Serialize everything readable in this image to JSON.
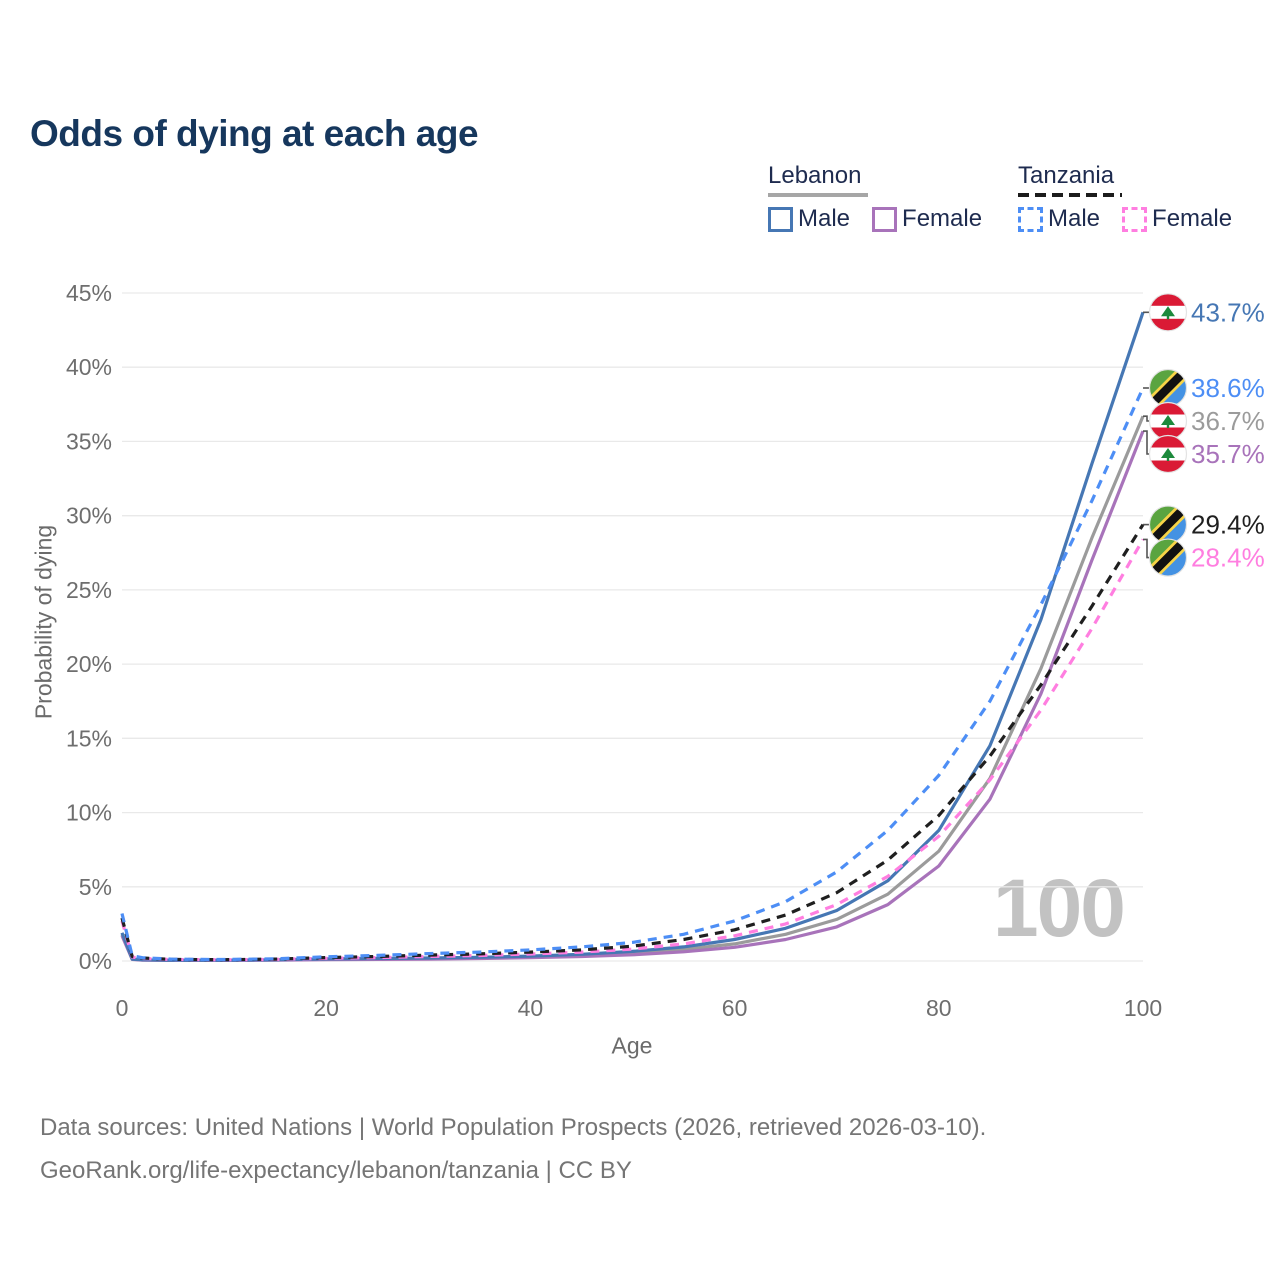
{
  "title": "Odds of dying at each age",
  "watermark": "100",
  "legend": {
    "groups": [
      {
        "id": "lebanon",
        "label": "Lebanon",
        "line_style": "solid",
        "line_color": "#a6a6a6",
        "items": [
          {
            "label": "Male",
            "color": "#4677b4",
            "dash": false
          },
          {
            "label": "Female",
            "color": "#a873ba",
            "dash": false
          }
        ]
      },
      {
        "id": "tanzania",
        "label": "Tanzania",
        "line_style": "dashed",
        "line_color": "#1c1c1c",
        "items": [
          {
            "label": "Male",
            "color": "#4d8ef5",
            "dash": true
          },
          {
            "label": "Female",
            "color": "#ff7ee0",
            "dash": true
          }
        ]
      }
    ]
  },
  "footer": {
    "line1": "Data sources: United Nations | World Population Prospects (2026, retrieved 2026-03-10).",
    "line2": "GeoRank.org/life-expectancy/lebanon/tanzania | CC BY"
  },
  "chart_data": {
    "type": "line",
    "title": "Odds of dying at each age",
    "xlabel": "Age",
    "ylabel": "Probability of dying",
    "xlim": [
      0,
      100
    ],
    "ylim": [
      0,
      45
    ],
    "x_ticks": [
      0,
      20,
      40,
      60,
      80,
      100
    ],
    "y_ticks": [
      0,
      5,
      10,
      15,
      20,
      25,
      30,
      35,
      40,
      45
    ],
    "y_tick_suffix": "%",
    "grid": "horizontal",
    "legend_position": "top-right",
    "hover_age": "100",
    "x": [
      0,
      1,
      2,
      5,
      10,
      15,
      20,
      25,
      30,
      35,
      40,
      45,
      50,
      55,
      60,
      65,
      70,
      75,
      80,
      85,
      90,
      95,
      100
    ],
    "series": [
      {
        "id": "lebanon-male",
        "name": "Lebanon Male",
        "country": "Lebanon",
        "sex": "Male",
        "color": "#4677b4",
        "dash": false,
        "flag": "lebanon",
        "end_label": "43.7%",
        "values": [
          1.9,
          0.12,
          0.08,
          0.05,
          0.05,
          0.08,
          0.14,
          0.17,
          0.2,
          0.25,
          0.33,
          0.45,
          0.65,
          0.95,
          1.45,
          2.2,
          3.4,
          5.4,
          8.8,
          14.5,
          23.0,
          33.5,
          43.7
        ]
      },
      {
        "id": "tanzania-male",
        "name": "Tanzania Male",
        "country": "Tanzania",
        "sex": "Male",
        "color": "#4d8ef5",
        "dash": true,
        "flag": "tanzania",
        "end_label": "38.6%",
        "values": [
          3.2,
          0.35,
          0.22,
          0.12,
          0.1,
          0.15,
          0.28,
          0.38,
          0.5,
          0.6,
          0.75,
          0.95,
          1.25,
          1.8,
          2.7,
          4.0,
          6.0,
          8.8,
          12.5,
          17.5,
          24.0,
          31.0,
          38.6
        ]
      },
      {
        "id": "lebanon-all",
        "name": "Lebanon",
        "country": "Lebanon",
        "sex": "All",
        "color": "#9b9b9b",
        "dash": false,
        "flag": "lebanon",
        "end_label": "36.7%",
        "values": [
          1.8,
          0.12,
          0.07,
          0.05,
          0.04,
          0.07,
          0.12,
          0.14,
          0.17,
          0.21,
          0.27,
          0.37,
          0.52,
          0.78,
          1.15,
          1.8,
          2.8,
          4.5,
          7.4,
          12.3,
          19.7,
          28.5,
          36.7
        ]
      },
      {
        "id": "lebanon-female",
        "name": "Lebanon Female",
        "country": "Lebanon",
        "sex": "Female",
        "color": "#a873ba",
        "dash": false,
        "flag": "lebanon",
        "end_label": "35.7%",
        "values": [
          1.7,
          0.11,
          0.06,
          0.04,
          0.04,
          0.06,
          0.09,
          0.11,
          0.13,
          0.17,
          0.22,
          0.3,
          0.42,
          0.62,
          0.92,
          1.45,
          2.3,
          3.8,
          6.4,
          10.9,
          18.0,
          27.0,
          35.7
        ]
      },
      {
        "id": "tanzania-all",
        "name": "Tanzania",
        "country": "Tanzania",
        "sex": "All",
        "color": "#1f1f1f",
        "dash": true,
        "flag": "tanzania",
        "end_label": "29.4%",
        "values": [
          2.9,
          0.3,
          0.2,
          0.11,
          0.09,
          0.13,
          0.23,
          0.3,
          0.4,
          0.48,
          0.6,
          0.75,
          1.0,
          1.45,
          2.1,
          3.1,
          4.6,
          6.8,
          9.8,
          13.8,
          18.6,
          23.9,
          29.4
        ]
      },
      {
        "id": "tanzania-female",
        "name": "Tanzania Female",
        "country": "Tanzania",
        "sex": "Female",
        "color": "#ff7ee0",
        "dash": true,
        "flag": "tanzania",
        "end_label": "28.4%",
        "values": [
          2.7,
          0.26,
          0.17,
          0.1,
          0.08,
          0.11,
          0.18,
          0.23,
          0.3,
          0.37,
          0.47,
          0.6,
          0.8,
          1.15,
          1.7,
          2.5,
          3.8,
          5.7,
          8.4,
          12.2,
          16.9,
          22.4,
          28.4
        ]
      }
    ]
  }
}
